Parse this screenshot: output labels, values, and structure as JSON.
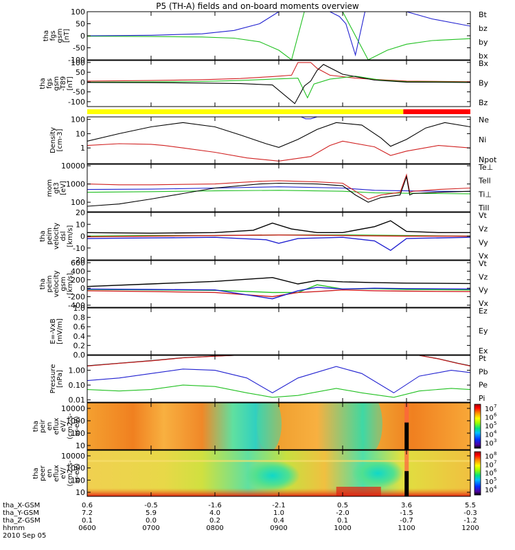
{
  "title": "P5 (TH-A) fields and on-board moments overview",
  "date": "2010 Sep 05",
  "colorbar_labels": {
    "cb1": [
      "10",
      "7",
      "10",
      "6",
      "10",
      "5",
      "10",
      "4",
      "10",
      "3"
    ],
    "cb2": [
      "10",
      "8",
      "10",
      "7",
      "10",
      "6",
      "10",
      "5",
      "10",
      "4"
    ]
  },
  "orbit": {
    "rows": [
      {
        "name": "tha_X-GSM",
        "values": [
          "0.6",
          "-0.5",
          "-1.6",
          "-2.1",
          "0.5",
          "3.6",
          "5.5"
        ]
      },
      {
        "name": "tha_Y-GSM",
        "values": [
          "7.2",
          "5.9",
          "4.0",
          "1.0",
          "-2.0",
          "-1.5",
          "-0.3"
        ]
      },
      {
        "name": "tha_Z-GSM",
        "values": [
          "0.1",
          "0.0",
          "0.2",
          "0.4",
          "0.1",
          "-0.7",
          "-1.2"
        ]
      },
      {
        "name": "hhmm",
        "values": [
          "0600",
          "0700",
          "0800",
          "0900",
          "1000",
          "1100",
          "1200"
        ]
      }
    ]
  },
  "chart_data": [
    {
      "type": "line",
      "ylabel": [
        "tha",
        "fgs",
        "gsm",
        "[nT]"
      ],
      "yticks": [
        "100",
        "50",
        "0",
        "-50",
        "-100"
      ],
      "ylim": [
        -100,
        100
      ],
      "legend": [
        {
          "name": "Bt",
          "color": "#000000"
        },
        {
          "name": "bz",
          "color": "#d02020"
        },
        {
          "name": "by",
          "color": "#20c020"
        },
        {
          "name": "bx",
          "color": "#2020d0"
        }
      ],
      "series": [
        {
          "name": "by",
          "color": "#20c020",
          "x": [
            6.0,
            7.0,
            7.8,
            8.3,
            8.7,
            9.0,
            9.2,
            9.4,
            10.0,
            10.4,
            10.7,
            11.0,
            11.4,
            12.0
          ],
          "y": [
            -2,
            -3,
            -5,
            -10,
            -25,
            -60,
            -100,
            100,
            100,
            -100,
            -60,
            -35,
            -20,
            -12
          ]
        },
        {
          "name": "bx",
          "color": "#2020d0",
          "x": [
            6.0,
            7.0,
            7.8,
            8.3,
            8.7,
            9.0,
            9.2,
            9.4,
            9.6,
            9.8,
            9.95,
            10.05,
            10.2,
            10.35,
            10.6,
            11.0,
            11.4,
            12.0
          ],
          "y": [
            0,
            2,
            8,
            22,
            50,
            100,
            100,
            100,
            100,
            100,
            80,
            50,
            -80,
            100,
            100,
            100,
            70,
            40
          ]
        }
      ]
    },
    {
      "type": "line",
      "ylabel": [
        "tha",
        "fgs",
        "gsm",
        "-T89",
        "[nT]"
      ],
      "yticks": [
        "100",
        "50",
        "0",
        "-50",
        "-100"
      ],
      "ylim": [
        -125,
        110
      ],
      "legend": [
        {
          "name": "Bx",
          "color": "#000000"
        },
        {
          "name": "By",
          "color": "#20c020"
        },
        {
          "name": "Bz",
          "color": "#d02020"
        }
      ],
      "series": [
        {
          "name": "Bz",
          "color": "#d02020",
          "x": [
            6.0,
            7.0,
            7.8,
            8.4,
            8.9,
            9.2,
            9.3,
            9.5,
            9.6,
            9.8,
            10.2,
            10.6,
            11.0,
            12.0
          ],
          "y": [
            5,
            8,
            12,
            18,
            28,
            35,
            100,
            100,
            70,
            35,
            20,
            12,
            5,
            2
          ]
        },
        {
          "name": "By",
          "color": "#20c020",
          "x": [
            6.0,
            7.0,
            7.8,
            8.4,
            8.9,
            9.3,
            9.45,
            9.55,
            9.8,
            10.2,
            10.6,
            11.0,
            12.0
          ],
          "y": [
            0,
            1,
            3,
            8,
            15,
            20,
            -80,
            -10,
            15,
            30,
            10,
            2,
            0
          ]
        },
        {
          "name": "Bx",
          "color": "#000000",
          "x": [
            6.0,
            7.0,
            7.8,
            8.4,
            8.9,
            9.25,
            9.4,
            9.5,
            9.6,
            9.7,
            10.0,
            10.5,
            11.0,
            12.0
          ],
          "y": [
            -2,
            -3,
            -5,
            -8,
            -15,
            -110,
            -20,
            5,
            60,
            90,
            40,
            10,
            0,
            -2
          ]
        }
      ]
    },
    {
      "type": "line",
      "ylabel": [
        "Density",
        "[cm-3]"
      ],
      "yticks": [
        "100",
        "10",
        "1"
      ],
      "yscale": "log",
      "ylim": [
        0.08,
        150
      ],
      "legend": [
        {
          "name": "Ne",
          "color": "#d02020"
        },
        {
          "name": "Ni",
          "color": "#000000"
        },
        {
          "name": "Npot",
          "color": "#2020d0"
        }
      ],
      "series": [
        {
          "name": "Ni",
          "color": "#000000",
          "x": [
            6.0,
            6.5,
            7.0,
            7.5,
            8.0,
            8.4,
            8.8,
            9.0,
            9.3,
            9.6,
            9.9,
            10.3,
            10.6,
            10.75,
            11.0,
            11.3,
            11.6,
            12.0
          ],
          "y": [
            3,
            10,
            30,
            60,
            30,
            8,
            2,
            1.1,
            4,
            20,
            60,
            40,
            5,
            1.3,
            4,
            25,
            60,
            30
          ]
        },
        {
          "name": "Ne",
          "color": "#d02020",
          "x": [
            6.0,
            6.5,
            7.0,
            7.2,
            7.5,
            8.0,
            8.5,
            9.0,
            9.5,
            9.8,
            10.0,
            10.5,
            10.75,
            11.0,
            11.5,
            12.0
          ],
          "y": [
            1.5,
            2,
            1.8,
            1.5,
            1,
            0.5,
            0.2,
            0.12,
            0.25,
            1.5,
            3,
            1.2,
            0.3,
            0.6,
            1.5,
            1
          ]
        },
        {
          "name": "Npot",
          "color": "#2020d0",
          "x": [
            9.35,
            9.42,
            9.5,
            9.6
          ],
          "y": [
            150,
            110,
            110,
            150
          ]
        }
      ]
    },
    {
      "type": "line",
      "ylabel": [
        "mom",
        "gt3",
        "[eV]"
      ],
      "yticks": [
        "10000",
        "1000",
        "100"
      ],
      "yscale": "log",
      "ylim": [
        30,
        12000
      ],
      "legend": [
        {
          "name": "Te⊥",
          "color": "#d02020"
        },
        {
          "name": "Tell",
          "color": "#000000"
        },
        {
          "name": "Ti⊥",
          "color": "#2020d0"
        },
        {
          "name": "Till",
          "color": "#20c020"
        }
      ],
      "series": [
        {
          "name": "Ti⊥",
          "color": "#2020d0",
          "x": [
            6.0,
            7.0,
            8.0,
            9.0,
            10.0,
            10.5,
            11.0,
            11.5,
            12.0
          ],
          "y": [
            500,
            520,
            600,
            700,
            600,
            450,
            420,
            400,
            390
          ]
        },
        {
          "name": "Till",
          "color": "#20c020",
          "x": [
            6.0,
            7.0,
            8.0,
            9.0,
            10.0,
            10.5,
            11.0,
            11.5,
            12.0
          ],
          "y": [
            350,
            380,
            420,
            450,
            400,
            330,
            310,
            300,
            290
          ]
        },
        {
          "name": "Te⊥",
          "color": "#d02020",
          "x": [
            6.0,
            6.5,
            7.0,
            8.0,
            8.7,
            9.0,
            9.6,
            10.0,
            10.2,
            10.4,
            10.6,
            10.9,
            11.0,
            11.05,
            11.1,
            11.5,
            12.0
          ],
          "y": [
            1000,
            900,
            900,
            1000,
            1400,
            1500,
            1300,
            1100,
            400,
            150,
            250,
            350,
            3200,
            350,
            400,
            500,
            600
          ]
        },
        {
          "name": "Tell",
          "color": "#000000",
          "x": [
            6.0,
            6.5,
            7.0,
            7.5,
            8.0,
            8.7,
            9.0,
            9.6,
            10.0,
            10.2,
            10.4,
            10.6,
            10.9,
            11.0,
            11.05,
            11.1,
            11.5,
            12.0
          ],
          "y": [
            60,
            80,
            150,
            300,
            600,
            1000,
            1100,
            1000,
            800,
            250,
            100,
            180,
            250,
            2500,
            250,
            300,
            350,
            400
          ]
        }
      ]
    },
    {
      "type": "line",
      "ylabel": [
        "tha",
        "peim",
        "velocity",
        "dsl",
        "[km/s]"
      ],
      "yticks": [
        "20",
        "10",
        "0",
        "-10",
        "-20"
      ],
      "ylim": [
        -20,
        20
      ],
      "legend": [
        {
          "name": "Vt",
          "color": "#000000"
        },
        {
          "name": "Vz",
          "color": "#d02020"
        },
        {
          "name": "Vy",
          "color": "#20c020"
        },
        {
          "name": "Vx",
          "color": "#2020d0"
        }
      ],
      "series": [
        {
          "name": "Vx",
          "color": "#2020d0",
          "x": [
            6.0,
            7.0,
            8.0,
            8.8,
            9.0,
            9.3,
            10.0,
            10.5,
            10.75,
            11.0,
            12.0
          ],
          "y": [
            -2,
            -1.5,
            -1,
            -3,
            -6,
            -2,
            -1,
            -4,
            -12,
            -2,
            -1
          ]
        },
        {
          "name": "Vy",
          "color": "#20c020",
          "x": [
            6.0,
            7.0,
            8.0,
            9.0,
            10.0,
            11.0,
            12.0
          ],
          "y": [
            0,
            0.5,
            0.5,
            1,
            1,
            0.5,
            0
          ]
        },
        {
          "name": "Vz",
          "color": "#d02020",
          "x": [
            6.0,
            7.0,
            8.0,
            9.0,
            10.0,
            11.0,
            12.0
          ],
          "y": [
            -0.5,
            0,
            0.5,
            1,
            0.5,
            0,
            0
          ]
        },
        {
          "name": "Vt",
          "color": "#000000",
          "x": [
            6.0,
            7.0,
            8.0,
            8.6,
            8.9,
            9.2,
            9.6,
            10.0,
            10.5,
            10.75,
            11.0,
            11.5,
            12.0
          ],
          "y": [
            3,
            2.5,
            3,
            5,
            11,
            6,
            3,
            3,
            8,
            13,
            4,
            3,
            3
          ]
        }
      ]
    },
    {
      "type": "line",
      "ylabel": [
        "tha",
        "peim",
        "velocity",
        "gsm",
        "[km/s]"
      ],
      "yticks": [
        "600",
        "400",
        "200",
        "0",
        "-200",
        "-400"
      ],
      "ylim": [
        -450,
        650
      ],
      "legend": [
        {
          "name": "Vt",
          "color": "#000000"
        },
        {
          "name": "Vz",
          "color": "#d02020"
        },
        {
          "name": "Vy",
          "color": "#20c020"
        },
        {
          "name": "Vx",
          "color": "#2020d0"
        }
      ],
      "series": [
        {
          "name": "Vt",
          "color": "#000000",
          "x": [
            6.0,
            7.0,
            8.0,
            8.6,
            8.9,
            9.3,
            9.6,
            10.0,
            10.5,
            11.0,
            12.0
          ],
          "y": [
            40,
            100,
            160,
            220,
            250,
            100,
            180,
            150,
            130,
            120,
            110
          ]
        },
        {
          "name": "Vy",
          "color": "#20c020",
          "x": [
            6.0,
            7.0,
            8.0,
            8.9,
            9.3,
            9.6,
            10.0,
            10.5,
            11.0,
            12.0
          ],
          "y": [
            -30,
            -40,
            -50,
            -100,
            -100,
            80,
            -20,
            -10,
            -30,
            -40
          ]
        },
        {
          "name": "Vz",
          "color": "#d02020",
          "x": [
            6.0,
            7.0,
            8.0,
            8.9,
            9.3,
            9.6,
            10.0,
            10.5,
            11.0,
            12.0
          ],
          "y": [
            -60,
            -80,
            -100,
            -200,
            -100,
            -80,
            -40,
            -60,
            -70,
            -80
          ]
        },
        {
          "name": "Vx",
          "color": "#2020d0",
          "x": [
            6.0,
            7.0,
            8.0,
            8.9,
            9.3,
            9.6,
            10.0,
            10.5,
            11.0,
            12.0
          ],
          "y": [
            -20,
            -30,
            -40,
            -250,
            -60,
            20,
            -20,
            0,
            -10,
            -20
          ]
        }
      ]
    },
    {
      "type": "line",
      "ylabel": [
        "E=-VxB",
        "[mV/m]"
      ],
      "yticks": [
        "1.0",
        "0.8",
        "0.6",
        "0.4",
        "0.2",
        "0.0"
      ],
      "ylim": [
        0,
        1
      ],
      "legend": [
        {
          "name": "Ez",
          "color": "#d02020"
        },
        {
          "name": "Ey",
          "color": "#20c020"
        },
        {
          "name": "Ex",
          "color": "#2020d0"
        }
      ],
      "series": []
    },
    {
      "type": "line",
      "ylabel": [
        "Pressure",
        "[nPa]"
      ],
      "yticks": [
        "1.00",
        "0.10",
        "0.01"
      ],
      "yscale": "log",
      "ylim": [
        0.007,
        10
      ],
      "legend": [
        {
          "name": "Pt",
          "color": "#000000"
        },
        {
          "name": "Pb",
          "color": "#d02020"
        },
        {
          "name": "Pe",
          "color": "#20c020"
        },
        {
          "name": "Pi",
          "color": "#2020d0"
        }
      ],
      "series": [
        {
          "name": "Pt",
          "color": "#000000",
          "x": [
            6.0,
            6.5,
            7.0,
            7.5,
            8.0,
            8.3,
            11.2,
            11.5,
            11.8,
            12.0
          ],
          "y": [
            2,
            3,
            4.5,
            7,
            9,
            10,
            10,
            6,
            3,
            2
          ]
        },
        {
          "name": "Pb",
          "color": "#d02020",
          "x": [
            6.0,
            6.5,
            7.0,
            7.5,
            8.0,
            8.3,
            11.2,
            11.5,
            11.8,
            12.0
          ],
          "y": [
            1.9,
            2.9,
            4.3,
            6.8,
            8.8,
            10,
            10,
            5.8,
            2.9,
            1.9
          ]
        },
        {
          "name": "Pi",
          "color": "#2020d0",
          "x": [
            6.0,
            6.5,
            7.0,
            7.5,
            8.0,
            8.5,
            8.9,
            9.3,
            9.9,
            10.3,
            10.8,
            11.2,
            11.7,
            12.0
          ],
          "y": [
            0.2,
            0.3,
            0.6,
            1.2,
            1.0,
            0.3,
            0.03,
            0.3,
            1.8,
            0.6,
            0.03,
            0.4,
            1.0,
            0.7
          ]
        },
        {
          "name": "Pe",
          "color": "#20c020",
          "x": [
            6.0,
            6.5,
            7.0,
            7.5,
            8.0,
            8.5,
            8.9,
            9.3,
            9.9,
            10.3,
            10.8,
            11.2,
            11.7,
            12.0
          ],
          "y": [
            0.05,
            0.04,
            0.05,
            0.1,
            0.08,
            0.03,
            0.015,
            0.02,
            0.06,
            0.03,
            0.015,
            0.04,
            0.06,
            0.05
          ]
        }
      ]
    },
    {
      "type": "heatmap",
      "ylabel": [
        "tha",
        "peir",
        "en",
        "eflux",
        "eV/",
        "(cm2-s-",
        "sr-eV)"
      ],
      "yticks": [
        "10000",
        "1000",
        "100",
        "10"
      ],
      "yscale": "log"
    },
    {
      "type": "heatmap",
      "ylabel": [
        "tha",
        "peer",
        "en",
        "eflux",
        "eV/",
        "(cm2-s-",
        "sr-eV)"
      ],
      "yticks": [
        "10000",
        "1000",
        "100",
        "10"
      ],
      "yscale": "log"
    }
  ]
}
